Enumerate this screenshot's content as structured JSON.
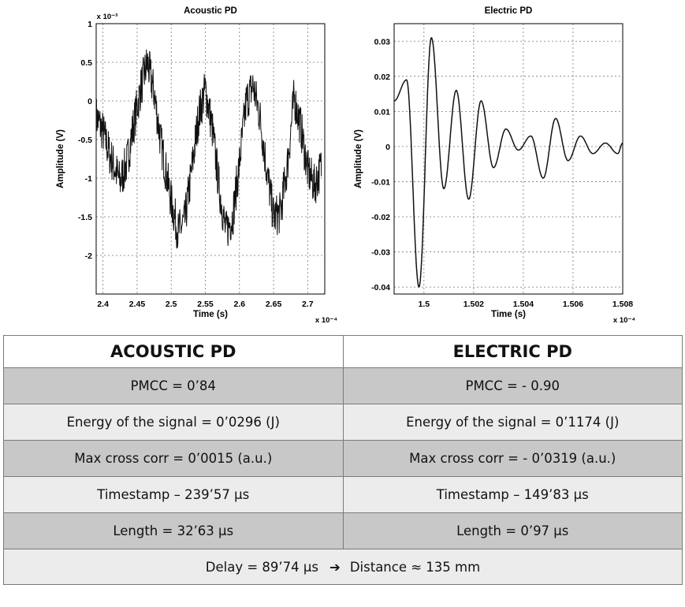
{
  "chart_data": [
    {
      "type": "line",
      "title": "Acoustic PD",
      "xlabel": "Time (s)",
      "ylabel": "Amplitude (V)",
      "x_multiplier": "x 10⁻⁴",
      "y_multiplier": "x 10⁻³",
      "xlim": [
        2.39,
        2.725
      ],
      "ylim": [
        -2.5,
        1
      ],
      "xticks": [
        "2.4",
        "2.45",
        "2.5",
        "2.55",
        "2.6",
        "2.65",
        "2.7"
      ],
      "yticks": [
        "1",
        "0.5",
        "0",
        "-0.5",
        "-1",
        "-1.5",
        "-2"
      ],
      "grid": true,
      "series": [
        {
          "x": [
            2.39,
            2.4,
            2.41,
            2.425,
            2.435,
            2.445,
            2.455,
            2.465,
            2.475,
            2.485,
            2.5,
            2.51,
            2.52,
            2.53,
            2.54,
            2.55,
            2.56,
            2.57,
            2.58,
            2.59,
            2.6,
            2.61,
            2.62,
            2.63,
            2.64,
            2.65,
            2.66,
            2.67,
            2.68,
            2.69,
            2.7,
            2.71,
            2.72
          ],
          "y": [
            -0.2,
            -0.4,
            -0.7,
            -1.05,
            -0.8,
            -0.3,
            0.15,
            0.5,
            0.1,
            -0.55,
            -1.3,
            -1.7,
            -1.55,
            -0.9,
            -0.2,
            0.15,
            -0.35,
            -1.1,
            -1.7,
            -1.5,
            -0.8,
            0.0,
            0.2,
            -0.2,
            -0.9,
            -1.5,
            -1.45,
            -0.85,
            0.05,
            -0.35,
            -0.9,
            -1.1,
            -0.85
          ],
          "noise": 0.28
        }
      ]
    },
    {
      "type": "line",
      "title": "Electric PD",
      "xlabel": "Time (s)",
      "ylabel": "Amplitude (V)",
      "x_multiplier": "x 10⁻⁴",
      "xlim": [
        1.4988,
        1.508
      ],
      "ylim": [
        -0.042,
        0.035
      ],
      "xticks": [
        "1.5",
        "1.502",
        "1.504",
        "1.506",
        "1.508"
      ],
      "yticks": [
        "0.03",
        "0.02",
        "0.01",
        "0",
        "-0.01",
        "-0.02",
        "-0.03",
        "-0.04"
      ],
      "grid": true,
      "series": [
        {
          "x": [
            1.4988,
            1.4993,
            1.4998,
            1.5003,
            1.5008,
            1.5013,
            1.5018,
            1.5023,
            1.5028,
            1.5033,
            1.5038,
            1.5043,
            1.5048,
            1.5053,
            1.5058,
            1.5063,
            1.5068,
            1.5073,
            1.5078,
            1.508
          ],
          "y": [
            0.013,
            0.019,
            -0.04,
            0.031,
            -0.012,
            0.016,
            -0.015,
            0.013,
            -0.006,
            0.005,
            -0.001,
            0.003,
            -0.009,
            0.008,
            -0.004,
            0.003,
            -0.002,
            0.001,
            -0.002,
            0.001
          ]
        }
      ]
    }
  ],
  "table": {
    "headers": [
      "ACOUSTIC PD",
      "ELECTRIC PD"
    ],
    "rows": [
      {
        "left": "PMCC = 0’84",
        "right": "PMCC = - 0.90"
      },
      {
        "left": "Energy of the signal = 0’0296 (J)",
        "right": "Energy of the signal = 0’1174 (J)"
      },
      {
        "left": "Max cross corr = 0’0015 (a.u.)",
        "right": "Max cross corr = - 0’0319 (a.u.)"
      },
      {
        "left": "Timestamp – 239’57 µs",
        "right": "Timestamp – 149’83 µs"
      },
      {
        "left": "Length  = 32’63 µs",
        "right": "Length  = 0’97 µs"
      }
    ],
    "footer": {
      "delay": "Delay = 89’74 µs",
      "arrow": "➔",
      "distance": "Distance ≈ 135 mm"
    }
  }
}
